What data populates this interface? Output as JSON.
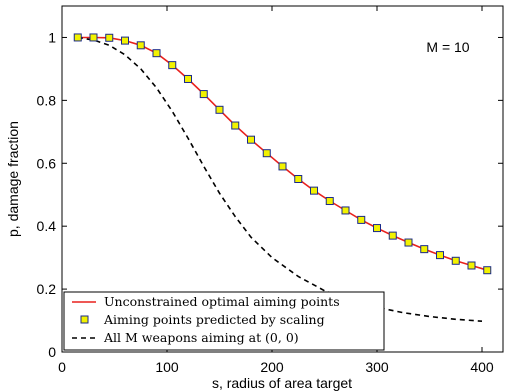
{
  "chart_data": {
    "type": "line",
    "xlabel": "s, radius of area target",
    "ylabel": "p, damage fraction",
    "annotation": "M = 10",
    "xlim": [
      0,
      420
    ],
    "ylim": [
      0,
      1.1
    ],
    "x_ticks": [
      0,
      100,
      200,
      300,
      400
    ],
    "y_ticks": [
      0,
      0.2,
      0.4,
      0.6,
      0.8,
      1
    ],
    "x_tick_labels": [
      "0",
      "100",
      "200",
      "300",
      "400"
    ],
    "y_tick_labels": [
      "0",
      "0.2",
      "0.4",
      "0.6",
      "0.8",
      "1"
    ],
    "legend_position": "bottom-left",
    "grid": false,
    "series": [
      {
        "name": "Unconstrained optimal aiming points",
        "style": "solid",
        "color": "#e8211d",
        "points": [
          [
            15,
            1.0
          ],
          [
            30,
            1.0
          ],
          [
            45,
            0.999
          ],
          [
            60,
            0.99
          ],
          [
            75,
            0.975
          ],
          [
            90,
            0.95
          ],
          [
            105,
            0.912
          ],
          [
            120,
            0.868
          ],
          [
            135,
            0.82
          ],
          [
            150,
            0.77
          ],
          [
            165,
            0.72
          ],
          [
            180,
            0.675
          ],
          [
            195,
            0.632
          ],
          [
            210,
            0.59
          ],
          [
            225,
            0.55
          ],
          [
            240,
            0.513
          ],
          [
            255,
            0.48
          ],
          [
            270,
            0.45
          ],
          [
            285,
            0.42
          ],
          [
            300,
            0.394
          ],
          [
            315,
            0.37
          ],
          [
            330,
            0.348
          ],
          [
            345,
            0.327
          ],
          [
            360,
            0.308
          ],
          [
            375,
            0.29
          ],
          [
            390,
            0.275
          ],
          [
            405,
            0.26
          ]
        ]
      },
      {
        "name": "Aiming points predicted by scaling",
        "style": "markers",
        "color": "#f2f200",
        "points": [
          [
            15,
            1.0
          ],
          [
            30,
            1.0
          ],
          [
            45,
            0.999
          ],
          [
            60,
            0.99
          ],
          [
            75,
            0.975
          ],
          [
            90,
            0.95
          ],
          [
            105,
            0.912
          ],
          [
            120,
            0.868
          ],
          [
            135,
            0.82
          ],
          [
            150,
            0.77
          ],
          [
            165,
            0.72
          ],
          [
            180,
            0.675
          ],
          [
            195,
            0.632
          ],
          [
            210,
            0.59
          ],
          [
            225,
            0.55
          ],
          [
            240,
            0.513
          ],
          [
            255,
            0.48
          ],
          [
            270,
            0.45
          ],
          [
            285,
            0.42
          ],
          [
            300,
            0.394
          ],
          [
            315,
            0.37
          ],
          [
            330,
            0.348
          ],
          [
            345,
            0.327
          ],
          [
            360,
            0.308
          ],
          [
            375,
            0.29
          ],
          [
            390,
            0.275
          ],
          [
            405,
            0.26
          ]
        ]
      },
      {
        "name": "All M weapons aiming at (0, 0)",
        "style": "dashed",
        "color": "#000000",
        "points": [
          [
            15,
            1.0
          ],
          [
            30,
            0.992
          ],
          [
            45,
            0.975
          ],
          [
            60,
            0.945
          ],
          [
            75,
            0.9
          ],
          [
            90,
            0.84
          ],
          [
            105,
            0.765
          ],
          [
            120,
            0.68
          ],
          [
            135,
            0.59
          ],
          [
            150,
            0.505
          ],
          [
            165,
            0.43
          ],
          [
            180,
            0.365
          ],
          [
            200,
            0.3
          ],
          [
            225,
            0.24
          ],
          [
            250,
            0.195
          ],
          [
            275,
            0.165
          ],
          [
            300,
            0.142
          ],
          [
            325,
            0.125
          ],
          [
            350,
            0.113
          ],
          [
            375,
            0.104
          ],
          [
            400,
            0.098
          ]
        ]
      }
    ]
  }
}
